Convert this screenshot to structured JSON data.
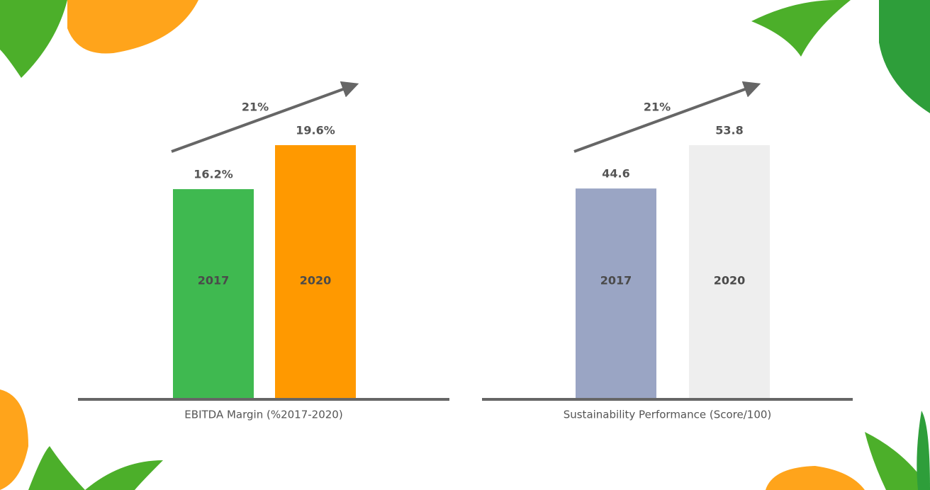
{
  "chart_data": [
    {
      "type": "bar",
      "title": "EBITDA Margin (%2017-2020)",
      "annotation": "21%",
      "categories": [
        "2017",
        "2020"
      ],
      "values": [
        16.2,
        19.6
      ],
      "value_labels": [
        "16.2%",
        "19.6%"
      ],
      "colors": [
        "#3fb950",
        "#ff9900"
      ]
    },
    {
      "type": "bar",
      "title": "Sustainability Performance (Score/100)",
      "annotation": "21%",
      "categories": [
        "2017",
        "2020"
      ],
      "values": [
        44.6,
        53.8
      ],
      "colors": [
        "#9aa5c4",
        "#eeeeee"
      ]
    }
  ]
}
